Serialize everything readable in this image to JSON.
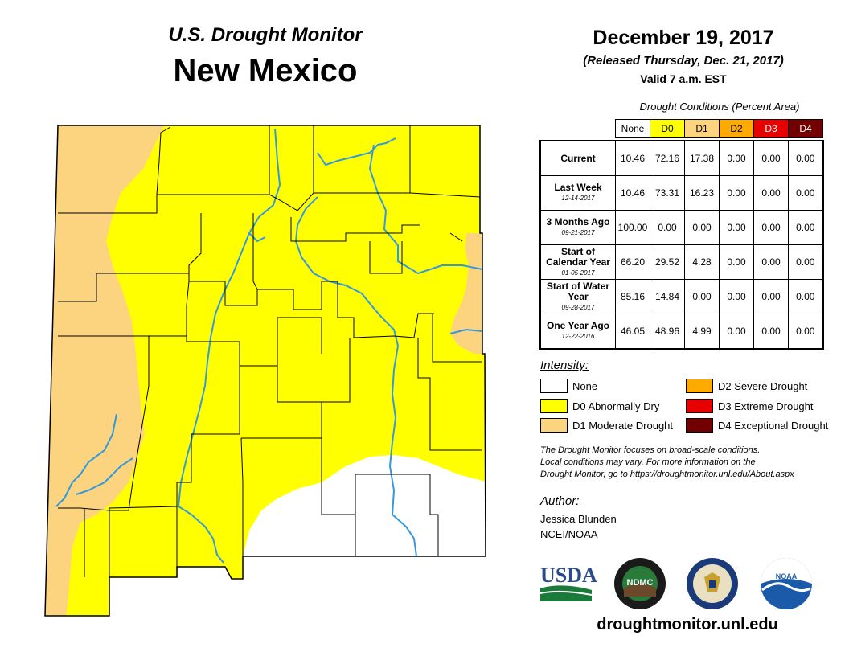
{
  "header": {
    "subtitle": "U.S. Drought Monitor",
    "title": "New Mexico",
    "date": "December 19, 2017",
    "released": "(Released Thursday, Dec. 21, 2017)",
    "valid": "Valid 7 a.m. EST"
  },
  "table": {
    "title": "Drought Conditions (Percent Area)",
    "columns": [
      "None",
      "D0",
      "D1",
      "D2",
      "D3",
      "D4"
    ],
    "column_colors": [
      "#ffffff",
      "#ffff00",
      "#fcd37f",
      "#ffaa00",
      "#e60000",
      "#730000"
    ],
    "rows": [
      {
        "label": "Current",
        "sub": "",
        "values": [
          "10.46",
          "72.16",
          "17.38",
          "0.00",
          "0.00",
          "0.00"
        ]
      },
      {
        "label": "Last Week",
        "sub": "12-14-2017",
        "values": [
          "10.46",
          "73.31",
          "16.23",
          "0.00",
          "0.00",
          "0.00"
        ]
      },
      {
        "label": "3 Months Ago",
        "sub": "09-21-2017",
        "values": [
          "100.00",
          "0.00",
          "0.00",
          "0.00",
          "0.00",
          "0.00"
        ]
      },
      {
        "label": "Start of Calendar Year",
        "sub": "01-05-2017",
        "values": [
          "66.20",
          "29.52",
          "4.28",
          "0.00",
          "0.00",
          "0.00"
        ]
      },
      {
        "label": "Start of Water Year",
        "sub": "09-28-2017",
        "values": [
          "85.16",
          "14.84",
          "0.00",
          "0.00",
          "0.00",
          "0.00"
        ]
      },
      {
        "label": "One Year Ago",
        "sub": "12-22-2016",
        "values": [
          "46.05",
          "48.96",
          "4.99",
          "0.00",
          "0.00",
          "0.00"
        ]
      }
    ]
  },
  "legend": {
    "heading": "Intensity:",
    "items": [
      {
        "label": "None",
        "color": "#ffffff"
      },
      {
        "label": "D0 Abnormally Dry",
        "color": "#ffff00"
      },
      {
        "label": "D1 Moderate Drought",
        "color": "#fcd37f"
      },
      {
        "label": "D2 Severe Drought",
        "color": "#ffaa00"
      },
      {
        "label": "D3 Extreme Drought",
        "color": "#e60000"
      },
      {
        "label": "D4 Exceptional Drought",
        "color": "#730000"
      }
    ]
  },
  "note": {
    "line1": "The Drought Monitor focuses on broad-scale conditions.",
    "line2": "Local conditions may vary. For more information on the",
    "line3": "Drought Monitor, go to https://droughtmonitor.unl.edu/About.aspx"
  },
  "author": {
    "heading": "Author:",
    "name": "Jessica Blunden",
    "org": "NCEI/NOAA"
  },
  "logos": {
    "usda": "USDA",
    "ndmc": "NDMC",
    "noaa": "NOAA"
  },
  "footer": {
    "url": "droughtmonitor.unl.edu"
  },
  "map": {
    "colors": {
      "none": "#ffffff",
      "d0": "#ffff00",
      "d1": "#fcd37f",
      "river": "#3399dd",
      "border": "#000000"
    }
  }
}
